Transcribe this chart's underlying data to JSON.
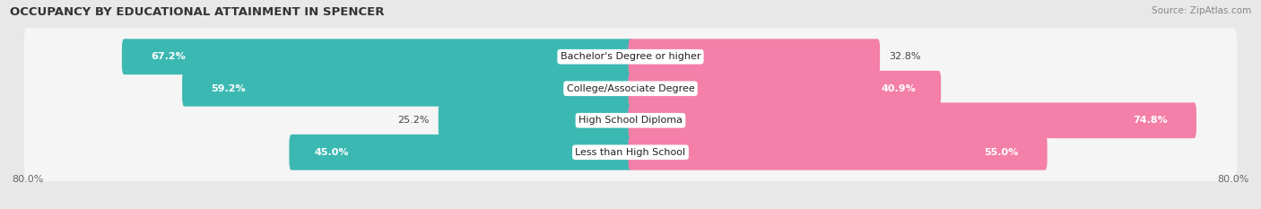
{
  "title": "OCCUPANCY BY EDUCATIONAL ATTAINMENT IN SPENCER",
  "source": "Source: ZipAtlas.com",
  "categories": [
    "Less than High School",
    "High School Diploma",
    "College/Associate Degree",
    "Bachelor's Degree or higher"
  ],
  "owner_pct": [
    45.0,
    25.2,
    59.2,
    67.2
  ],
  "renter_pct": [
    55.0,
    74.8,
    40.9,
    32.8
  ],
  "owner_color": "#3CB8B2",
  "renter_color": "#F47FA8",
  "bg_color": "#e8e8e8",
  "row_bg_color": "#f5f5f5",
  "title_fontsize": 9.5,
  "source_fontsize": 7.5,
  "label_fontsize": 8,
  "category_fontsize": 8,
  "legend_fontsize": 8
}
